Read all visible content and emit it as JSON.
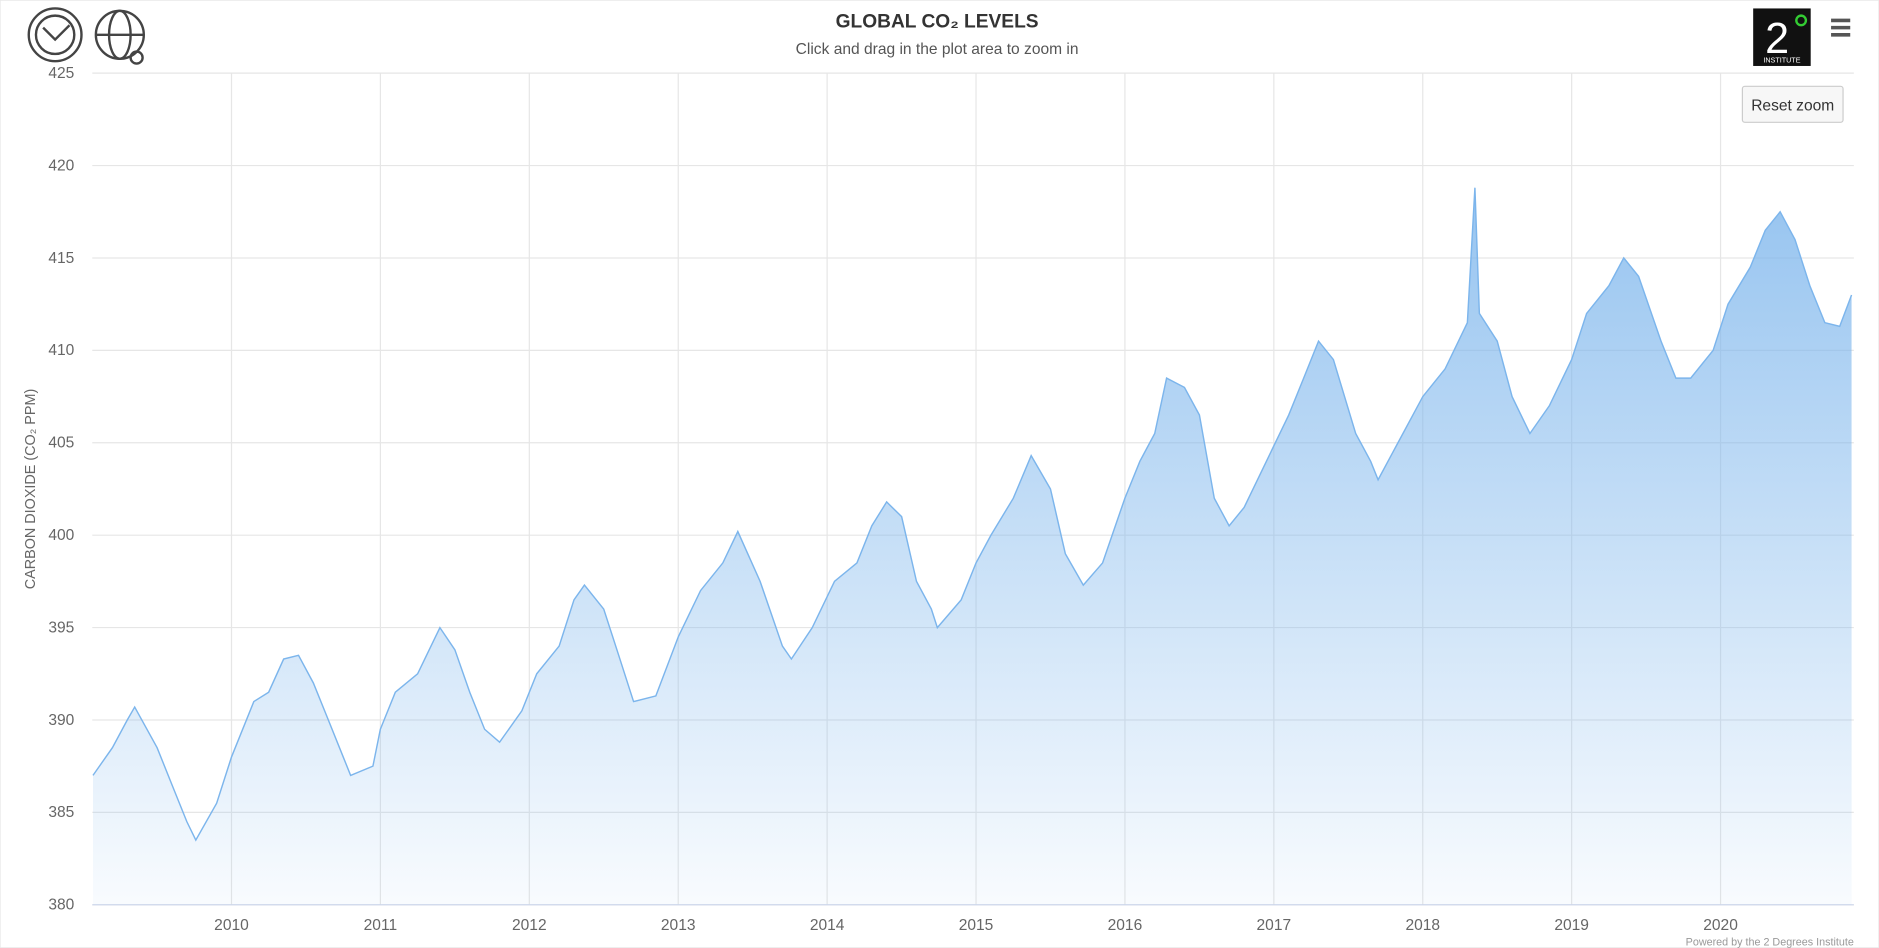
{
  "chart_data": {
    "type": "area",
    "title": "GLOBAL CO₂ LEVELS",
    "subtitle": "Click and drag in the plot area to zoom in",
    "y_label": "CARBON DIOXIDE (CO₂ PPM)",
    "credits": "Powered by the 2 Degrees Institute",
    "reset_button": "Reset zoom",
    "logo": {
      "numeral": "2",
      "caption": "INSTITUTE"
    },
    "color": "#7cb5ec",
    "grid": true,
    "xlim": [
      2009.065,
      2020.895
    ],
    "xticks": [
      2010,
      2011,
      2012,
      2013,
      2014,
      2015,
      2016,
      2017,
      2018,
      2019,
      2020
    ],
    "ylim": [
      380,
      425
    ],
    "yticks": [
      380,
      385,
      390,
      395,
      400,
      405,
      410,
      415,
      420,
      425
    ],
    "x": [
      2009.07,
      2009.2,
      2009.3,
      2009.35,
      2009.5,
      2009.6,
      2009.7,
      2009.76,
      2009.9,
      2010.0,
      2010.15,
      2010.25,
      2010.35,
      2010.45,
      2010.55,
      2010.65,
      2010.75,
      2010.8,
      2010.95,
      2011.0,
      2011.1,
      2011.25,
      2011.4,
      2011.5,
      2011.6,
      2011.7,
      2011.8,
      2011.95,
      2012.05,
      2012.2,
      2012.3,
      2012.37,
      2012.5,
      2012.6,
      2012.7,
      2012.85,
      2013.0,
      2013.15,
      2013.3,
      2013.4,
      2013.55,
      2013.7,
      2013.76,
      2013.9,
      2014.05,
      2014.2,
      2014.3,
      2014.4,
      2014.5,
      2014.6,
      2014.7,
      2014.74,
      2014.9,
      2015.0,
      2015.1,
      2015.25,
      2015.37,
      2015.5,
      2015.6,
      2015.72,
      2015.85,
      2016.0,
      2016.1,
      2016.2,
      2016.28,
      2016.4,
      2016.5,
      2016.6,
      2016.7,
      2016.8,
      2016.95,
      2017.1,
      2017.2,
      2017.3,
      2017.4,
      2017.55,
      2017.65,
      2017.7,
      2017.8,
      2018.0,
      2018.15,
      2018.3,
      2018.35,
      2018.38,
      2018.5,
      2018.6,
      2018.72,
      2018.85,
      2019.0,
      2019.1,
      2019.25,
      2019.35,
      2019.45,
      2019.6,
      2019.7,
      2019.8,
      2019.95,
      2020.05,
      2020.2,
      2020.3,
      2020.4,
      2020.5,
      2020.6,
      2020.7,
      2020.8,
      2020.88
    ],
    "values": [
      387,
      388.5,
      390,
      390.7,
      388.5,
      386.5,
      384.5,
      383.5,
      385.5,
      388,
      391,
      391.5,
      393.3,
      393.5,
      392,
      390,
      388,
      387,
      387.5,
      389.5,
      391.5,
      392.5,
      395,
      393.8,
      391.5,
      389.5,
      388.8,
      390.5,
      392.5,
      394,
      396.5,
      397.3,
      396,
      393.5,
      391,
      391.3,
      394.5,
      397,
      398.5,
      400.2,
      397.5,
      394,
      393.3,
      395,
      397.5,
      398.5,
      400.5,
      401.8,
      401,
      397.5,
      396,
      395,
      396.5,
      398.5,
      400,
      402,
      404.3,
      402.5,
      399,
      397.3,
      398.5,
      402,
      404,
      405.5,
      408.5,
      408,
      406.5,
      402,
      400.5,
      401.5,
      404,
      406.5,
      408.5,
      410.5,
      409.5,
      405.5,
      404,
      403,
      404.5,
      407.5,
      409,
      411.5,
      418.8,
      412,
      410.5,
      407.5,
      405.5,
      407,
      409.5,
      412,
      413.5,
      415,
      414,
      410.5,
      408.5,
      408.5,
      410,
      412.5,
      414.5,
      416.5,
      417.5,
      416,
      413.5,
      411.5,
      411.3,
      413
    ]
  }
}
